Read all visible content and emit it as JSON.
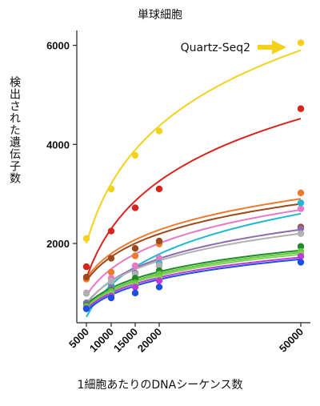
{
  "chart_data": {
    "type": "scatter",
    "title": "単球細胞",
    "xlabel": "1細胞あたりのDNAシーケンス数",
    "ylabel": "検出された遺伝子数",
    "x": [
      5000,
      10000,
      15000,
      20000,
      50000
    ],
    "x_tick_labels": [
      "5000",
      "10000",
      "15000",
      "20000",
      "50000"
    ],
    "y_tick_labels": [
      "2000",
      "4000",
      "6000"
    ],
    "y_ticks": [
      2000,
      4000,
      6000
    ],
    "ylim": [
      400,
      6300
    ],
    "annotation": "Quartz-Seq2",
    "annotation_color": "#f2d21b",
    "series": [
      {
        "color": "#f2d21b",
        "values": [
          2100,
          3100,
          3780,
          4270,
          6050
        ],
        "fit": [
          2000,
          5900
        ]
      },
      {
        "color": "#d9231d",
        "values": [
          1530,
          2250,
          2720,
          3100,
          4720
        ],
        "fit": [
          1300,
          4520
        ]
      },
      {
        "color": "#ef7a2f",
        "values": [
          1280,
          1420,
          1750,
          1990,
          3020
        ],
        "fit": [
          1300,
          2900
        ]
      },
      {
        "color": "#9c4a1c",
        "values": [
          1320,
          1700,
          1900,
          2050,
          2330
        ],
        "fit": [
          1250,
          2800
        ]
      },
      {
        "color": "#e879c6",
        "values": [
          1000,
          1300,
          1550,
          1700,
          2700
        ],
        "fit": [
          950,
          2680
        ]
      },
      {
        "color": "#1fb8d0",
        "values": [
          800,
          1150,
          1400,
          1600,
          2820
        ],
        "fit": [
          520,
          2600
        ]
      },
      {
        "color": "#8c6bb1",
        "values": [
          800,
          1100,
          1400,
          1550,
          2300
        ],
        "fit": [
          780,
          2280
        ]
      },
      {
        "color": "#b0b0b0",
        "values": [
          990,
          1240,
          1380,
          1560,
          2200
        ],
        "fit": [
          800,
          2200
        ]
      },
      {
        "color": "#1f8a2a",
        "values": [
          750,
          1050,
          1300,
          1450,
          1940
        ],
        "fit": [
          760,
          1860
        ]
      },
      {
        "color": "#64c83b",
        "values": [
          730,
          1030,
          1200,
          1380,
          1840
        ],
        "fit": [
          720,
          1820
        ]
      },
      {
        "color": "#7fd15a",
        "values": [
          700,
          980,
          1150,
          1300,
          1780
        ],
        "fit": [
          700,
          1780
        ]
      },
      {
        "color": "#c23ad6",
        "values": [
          690,
          940,
          1120,
          1250,
          1740
        ],
        "fit": [
          680,
          1720
        ]
      },
      {
        "color": "#1d4fe0",
        "values": [
          680,
          900,
          1000,
          1120,
          1620
        ],
        "fit": [
          640,
          1680
        ]
      }
    ]
  }
}
